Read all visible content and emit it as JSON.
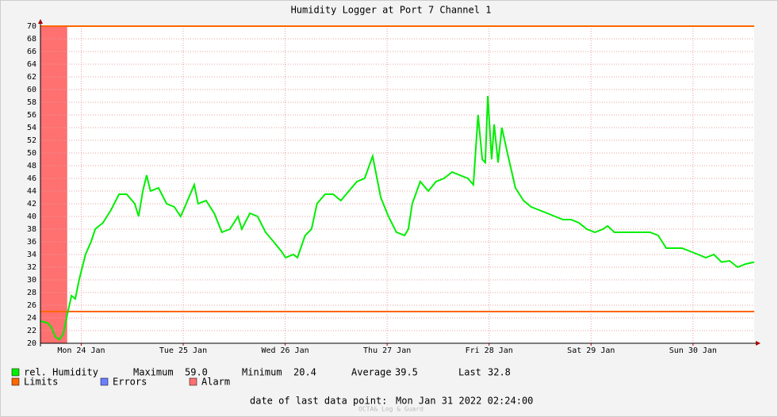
{
  "chart_data": {
    "type": "line",
    "title": "Humidity Logger at Port 7 Channel 1",
    "x": [
      0,
      1.7,
      2.6,
      3.5,
      4.5,
      5.4,
      6.3,
      7.3,
      8.2,
      9.1,
      10.6,
      11.9,
      12.9,
      14.7,
      16.6,
      18.5,
      20.3,
      22.2,
      23.1,
      24.1,
      25,
      25.9,
      27.8,
      29.7,
      31.5,
      33,
      34.3,
      36.2,
      37.1,
      39,
      40.9,
      42.7,
      44.6,
      46.5,
      47.4,
      49.3,
      51.1,
      53,
      54.9,
      56.7,
      57.7,
      59.5,
      60.5,
      62.3,
      63.8,
      65.1,
      67,
      68.9,
      70.7,
      72.6,
      74.5,
      76.3,
      78.2,
      80.1,
      81.9,
      83.8,
      85.7,
      86.6,
      87.5,
      89.4,
      91.3,
      93.1,
      95,
      96.9,
      98.7,
      100.6,
      101.9,
      103,
      104,
      104.7,
      105.3,
      106.2,
      106.8,
      107.7,
      108.6,
      109.9,
      111.8,
      113.7,
      115.5,
      117.4,
      119.3,
      121.1,
      123,
      124.9,
      126.7,
      128.6,
      130.5,
      132.4,
      133.5,
      135.1,
      137.9,
      139.8,
      141.7,
      143.5,
      145.4,
      147.3,
      149.2,
      151,
      152.9,
      154.8,
      156.6,
      158.5,
      160.3,
      162.2,
      164.1,
      166,
      168
    ],
    "series": [
      {
        "name": "rel. Humidity",
        "color": "#00ee00",
        "values": [
          23.5,
          23.2,
          22.5,
          21,
          20.6,
          21.5,
          24.5,
          27.5,
          27,
          30,
          34,
          36,
          38,
          39,
          41,
          43.5,
          43.5,
          42,
          40,
          44,
          46.5,
          44,
          44.5,
          42,
          41.5,
          40,
          42,
          45,
          42,
          42.5,
          40.5,
          37.5,
          38,
          40,
          38,
          40.5,
          40,
          37.5,
          36,
          34.5,
          33.5,
          34,
          33.5,
          37,
          38,
          42,
          43.5,
          43.5,
          42.5,
          44,
          45.5,
          46,
          49.5,
          43,
          40,
          37.5,
          37,
          38,
          42,
          45.5,
          44,
          45.5,
          46,
          47,
          46.5,
          46,
          45,
          56,
          49,
          48.5,
          59,
          49,
          54.5,
          48.5,
          54,
          50,
          44.5,
          42.5,
          41.5,
          41,
          40.5,
          40,
          39.5,
          39.5,
          39,
          38,
          37.5,
          38,
          38.5,
          37.5,
          37.5,
          37.5,
          37.5,
          37.5,
          37,
          35,
          35,
          35,
          34.5,
          34,
          33.5,
          34,
          32.8,
          33,
          32,
          32.5,
          32.8
        ]
      }
    ],
    "xlim": [
      0,
      168
    ],
    "xticks": [
      {
        "value": 9.6,
        "label": "Mon 24 Jan"
      },
      {
        "value": 33.6,
        "label": "Tue 25 Jan"
      },
      {
        "value": 57.6,
        "label": "Wed 26 Jan"
      },
      {
        "value": 81.6,
        "label": "Thu 27 Jan"
      },
      {
        "value": 105.6,
        "label": "Fri 28 Jan"
      },
      {
        "value": 129.6,
        "label": "Sat 29 Jan"
      },
      {
        "value": 153.6,
        "label": "Sun 30 Jan"
      }
    ],
    "ylim": [
      20,
      70
    ],
    "yticks": [
      20,
      22,
      24,
      26,
      28,
      30,
      32,
      34,
      36,
      38,
      40,
      42,
      44,
      46,
      48,
      50,
      52,
      54,
      56,
      58,
      60,
      62,
      64,
      66,
      68,
      70
    ],
    "grid": true,
    "limits": {
      "name": "Limits",
      "color": "#ff6600",
      "values": [
        25,
        70
      ]
    },
    "errors": {
      "name": "Errors",
      "color": "#6b7fff"
    },
    "alarm": {
      "name": "Alarm",
      "color": "#ff7070",
      "spans": [
        [
          0,
          6.3
        ]
      ]
    },
    "stats": [
      {
        "name": "Maximum",
        "value": "59.0"
      },
      {
        "name": "Minimum",
        "value": "20.4"
      },
      {
        "name": "Average",
        "value": "39.5"
      },
      {
        "name": "Last",
        "value": "32.8"
      }
    ],
    "footer": {
      "label": "date of last data point:",
      "value": "Mon Jan 31 2022 02:24:00"
    },
    "watermark": "OCTA& Log & Guard"
  }
}
